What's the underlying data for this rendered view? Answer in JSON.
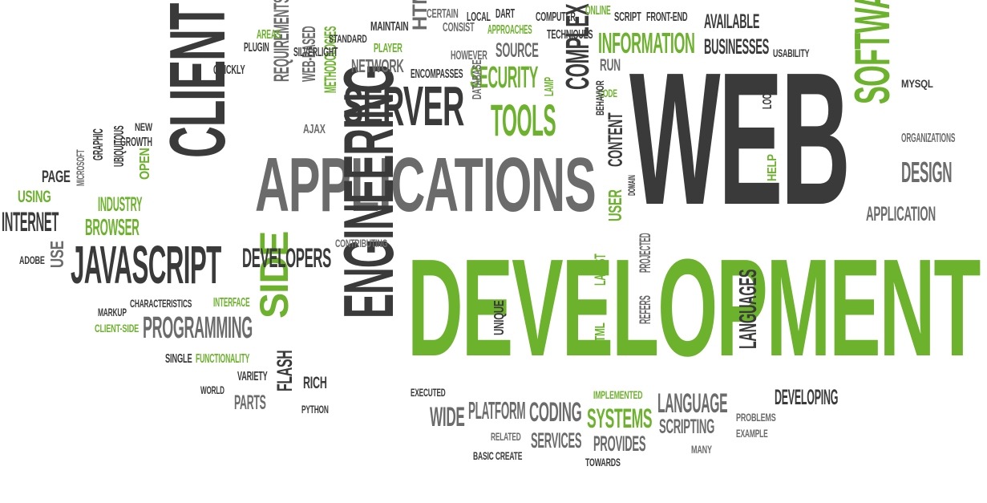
{
  "palette": {
    "green": "#6cb22c",
    "dark": "#3a3a3a",
    "mid": "#6b6b6b",
    "light": "#9a9a9a"
  },
  "words": [
    {
      "id": "web",
      "text": "WEB",
      "color": "dark"
    },
    {
      "id": "development",
      "text": "DEVELOPMENT",
      "color": "green"
    },
    {
      "id": "applications",
      "text": "APPLICATIONS",
      "color": "mid"
    },
    {
      "id": "client",
      "text": "CLIENT",
      "color": "dark"
    },
    {
      "id": "javascript",
      "text": "JAVASCRIPT",
      "color": "dark"
    },
    {
      "id": "engineering",
      "text": "ENGINEERING",
      "color": "dark"
    },
    {
      "id": "side",
      "text": "SIDE",
      "color": "green"
    },
    {
      "id": "server",
      "text": "SERVER",
      "color": "dark"
    },
    {
      "id": "software",
      "text": "SOFTWARE",
      "color": "green"
    },
    {
      "id": "tools",
      "text": "TOOLS",
      "color": "green"
    },
    {
      "id": "security",
      "text": "SECURITY",
      "color": "green"
    },
    {
      "id": "information",
      "text": "INFORMATION",
      "color": "green"
    },
    {
      "id": "businesses",
      "text": "BUSINESSES",
      "color": "dark"
    },
    {
      "id": "available",
      "text": "AVAILABLE",
      "color": "dark"
    },
    {
      "id": "complex",
      "text": "COMPLEX",
      "color": "dark"
    },
    {
      "id": "programming",
      "text": "PROGRAMMING",
      "color": "mid"
    },
    {
      "id": "developers",
      "text": "DEVELOPERS",
      "color": "dark"
    },
    {
      "id": "design",
      "text": "DESIGN",
      "color": "mid"
    },
    {
      "id": "application",
      "text": "APPLICATION",
      "color": "mid"
    },
    {
      "id": "languages",
      "text": "LANGUAGES",
      "color": "dark"
    },
    {
      "id": "language",
      "text": "LANGUAGE",
      "color": "mid"
    },
    {
      "id": "developing",
      "text": "DEVELOPING",
      "color": "dark"
    },
    {
      "id": "systems",
      "text": "SYSTEMS",
      "color": "green"
    },
    {
      "id": "coding",
      "text": "CODING",
      "color": "mid"
    },
    {
      "id": "platform",
      "text": "PLATFORM",
      "color": "mid"
    },
    {
      "id": "wide",
      "text": "WIDE",
      "color": "mid"
    },
    {
      "id": "services",
      "text": "SERVICES",
      "color": "mid"
    },
    {
      "id": "provides",
      "text": "PROVIDES",
      "color": "mid"
    },
    {
      "id": "scripting",
      "text": "SCRIPTING",
      "color": "mid"
    },
    {
      "id": "internet",
      "text": "INTERNET",
      "color": "dark"
    },
    {
      "id": "browser",
      "text": "BROWSER",
      "color": "green"
    },
    {
      "id": "industry",
      "text": "INDUSTRY",
      "color": "green"
    },
    {
      "id": "using",
      "text": "USING",
      "color": "green"
    },
    {
      "id": "page",
      "text": "PAGE",
      "color": "dark"
    },
    {
      "id": "network",
      "text": "NETWORK",
      "color": "mid"
    },
    {
      "id": "source",
      "text": "SOURCE",
      "color": "mid"
    },
    {
      "id": "run",
      "text": "RUN",
      "color": "mid"
    },
    {
      "id": "html",
      "text": "HTML",
      "color": "mid"
    },
    {
      "id": "requirements",
      "text": "REQUIREMENTS",
      "color": "mid"
    },
    {
      "id": "web-based",
      "text": "WEB-BASED",
      "color": "mid"
    },
    {
      "id": "methodologies",
      "text": "METHODOLOGIES",
      "color": "green"
    },
    {
      "id": "ajax",
      "text": "AJAX",
      "color": "mid"
    },
    {
      "id": "standard",
      "text": "STANDARD",
      "color": "dark"
    },
    {
      "id": "silverlight",
      "text": "SILVERLIGHT",
      "color": "dark"
    },
    {
      "id": "plugin",
      "text": "PLUGIN",
      "color": "dark"
    },
    {
      "id": "areas",
      "text": "AREAS",
      "color": "green"
    },
    {
      "id": "quickly",
      "text": "QUICKLY",
      "color": "dark"
    },
    {
      "id": "maintain",
      "text": "MAINTAIN",
      "color": "dark"
    },
    {
      "id": "player",
      "text": "PLAYER",
      "color": "green"
    },
    {
      "id": "certain",
      "text": "CERTAIN",
      "color": "mid"
    },
    {
      "id": "consist",
      "text": "CONSIST",
      "color": "mid"
    },
    {
      "id": "local",
      "text": "LOCAL",
      "color": "dark"
    },
    {
      "id": "dart",
      "text": "DART",
      "color": "dark"
    },
    {
      "id": "approaches",
      "text": "APPROACHES",
      "color": "green"
    },
    {
      "id": "computer",
      "text": "COMPUTER",
      "color": "dark"
    },
    {
      "id": "techniques",
      "text": "TECHNIQUES",
      "color": "dark"
    },
    {
      "id": "online",
      "text": "ONLINE",
      "color": "green"
    },
    {
      "id": "script",
      "text": "SCRIPT",
      "color": "dark"
    },
    {
      "id": "front-end",
      "text": "FRONT-END",
      "color": "dark"
    },
    {
      "id": "usability",
      "text": "USABILITY",
      "color": "dark"
    },
    {
      "id": "however",
      "text": "HOWEVER",
      "color": "mid"
    },
    {
      "id": "encompasses",
      "text": "ENCOMPASSES",
      "color": "dark"
    },
    {
      "id": "database",
      "text": "DATABASE",
      "color": "mid"
    },
    {
      "id": "lamp",
      "text": "LAMP",
      "color": "green"
    },
    {
      "id": "code",
      "text": "CODE",
      "color": "green"
    },
    {
      "id": "behavior",
      "text": "BEHAVIOR",
      "color": "dark"
    },
    {
      "id": "content",
      "text": "CONTENT",
      "color": "dark"
    },
    {
      "id": "user",
      "text": "USER",
      "color": "green"
    },
    {
      "id": "domain",
      "text": "DOMAIN",
      "color": "dark"
    },
    {
      "id": "help",
      "text": "HELP",
      "color": "green"
    },
    {
      "id": "locally",
      "text": "LOCALLY",
      "color": "dark"
    },
    {
      "id": "mysql",
      "text": "MYSQL",
      "color": "dark"
    },
    {
      "id": "organizations",
      "text": "ORGANIZATIONS",
      "color": "mid"
    },
    {
      "id": "new",
      "text": "NEW",
      "color": "dark"
    },
    {
      "id": "growth",
      "text": "GROWTH",
      "color": "dark"
    },
    {
      "id": "graphic",
      "text": "GRAPHIC",
      "color": "dark"
    },
    {
      "id": "ubiquitous",
      "text": "UBIQUITOUS",
      "color": "dark"
    },
    {
      "id": "open",
      "text": "OPEN",
      "color": "green"
    },
    {
      "id": "microsoft",
      "text": "MICROSOFT",
      "color": "mid"
    },
    {
      "id": "adobe",
      "text": "ADOBE",
      "color": "dark"
    },
    {
      "id": "use",
      "text": "USE",
      "color": "mid"
    },
    {
      "id": "contributing",
      "text": "CONTRIBUTING",
      "color": "mid"
    },
    {
      "id": "markup",
      "text": "MARKUP",
      "color": "dark"
    },
    {
      "id": "characteristics",
      "text": "CHARACTERISTICS",
      "color": "dark"
    },
    {
      "id": "interface",
      "text": "INTERFACE",
      "color": "green"
    },
    {
      "id": "client-side",
      "text": "CLIENT-SIDE",
      "color": "green"
    },
    {
      "id": "single",
      "text": "SINGLE",
      "color": "dark"
    },
    {
      "id": "functionality",
      "text": "FUNCTIONALITY",
      "color": "green"
    },
    {
      "id": "world",
      "text": "WORLD",
      "color": "dark"
    },
    {
      "id": "variety",
      "text": "VARIETY",
      "color": "dark"
    },
    {
      "id": "parts",
      "text": "PARTS",
      "color": "mid"
    },
    {
      "id": "flash",
      "text": "FLASH",
      "color": "dark"
    },
    {
      "id": "rich",
      "text": "RICH",
      "color": "dark"
    },
    {
      "id": "python",
      "text": "PYTHON",
      "color": "dark"
    },
    {
      "id": "executed",
      "text": "EXECUTED",
      "color": "dark"
    },
    {
      "id": "related",
      "text": "RELATED",
      "color": "mid"
    },
    {
      "id": "basic-create",
      "text": "BASIC CREATE",
      "color": "dark"
    },
    {
      "id": "unique",
      "text": "UNIQUE",
      "color": "dark"
    },
    {
      "id": "latest",
      "text": "LATEST",
      "color": "green"
    },
    {
      "id": "projected",
      "text": "PROJECTED",
      "color": "mid"
    },
    {
      "id": "refers",
      "text": "REFERS",
      "color": "mid"
    },
    {
      "id": "xhtml",
      "text": "XHTML",
      "color": "green"
    },
    {
      "id": "implemented",
      "text": "IMPLEMENTED",
      "color": "green"
    },
    {
      "id": "towards",
      "text": "TOWARDS",
      "color": "dark"
    },
    {
      "id": "many",
      "text": "MANY",
      "color": "mid"
    },
    {
      "id": "problems",
      "text": "PROBLEMS",
      "color": "mid"
    },
    {
      "id": "example",
      "text": "EXAMPLE",
      "color": "mid"
    }
  ]
}
